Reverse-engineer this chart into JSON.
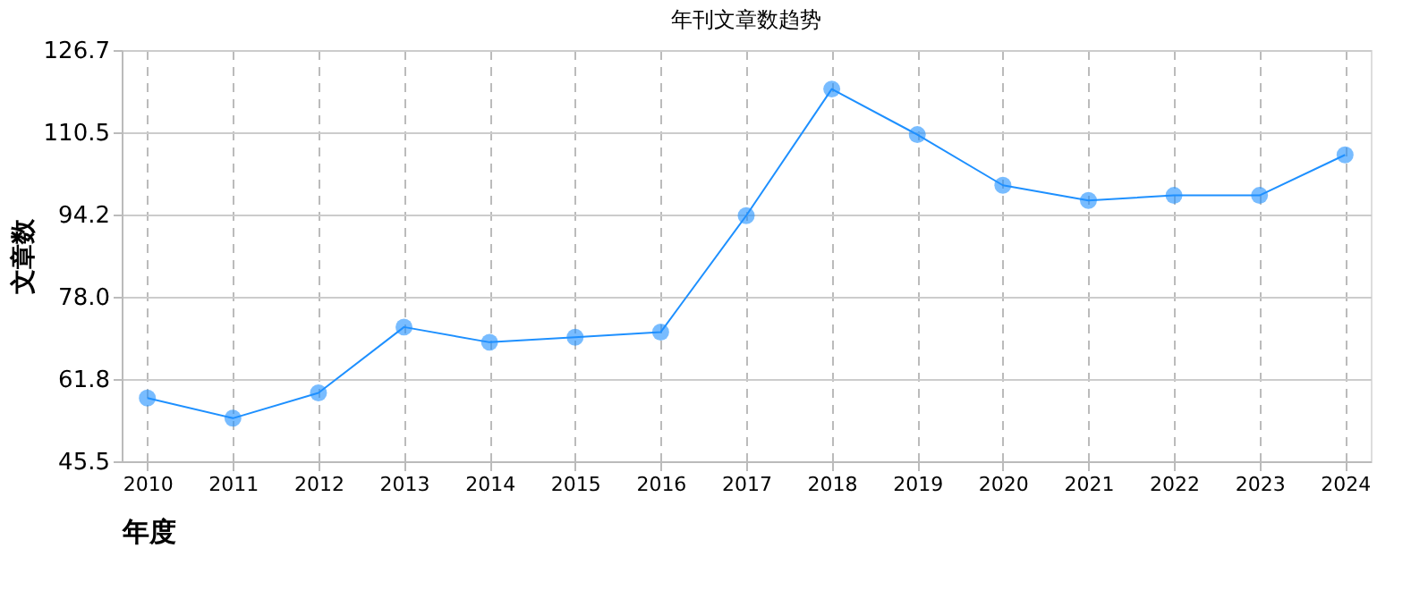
{
  "chart_data": {
    "type": "line",
    "title": "年刊文章数趋势",
    "xlabel": "年度",
    "ylabel": "文章数",
    "categories": [
      "2010",
      "2011",
      "2012",
      "2013",
      "2014",
      "2015",
      "2016",
      "2017",
      "2018",
      "2019",
      "2020",
      "2021",
      "2022",
      "2023",
      "2024"
    ],
    "series": [
      {
        "color": "#1e90ff",
        "values": [
          58,
          54,
          59,
          72,
          69,
          70,
          71,
          94,
          119,
          110,
          100,
          97,
          98,
          98,
          106
        ]
      }
    ],
    "ylim": [
      45.5,
      126.7
    ],
    "yticks": [
      45.5,
      61.8,
      {
        "value": 78,
        "label": "78.0"
      },
      94.2,
      110.5,
      126.7
    ],
    "grid": true,
    "marker": "circle",
    "line_style": "solid"
  }
}
